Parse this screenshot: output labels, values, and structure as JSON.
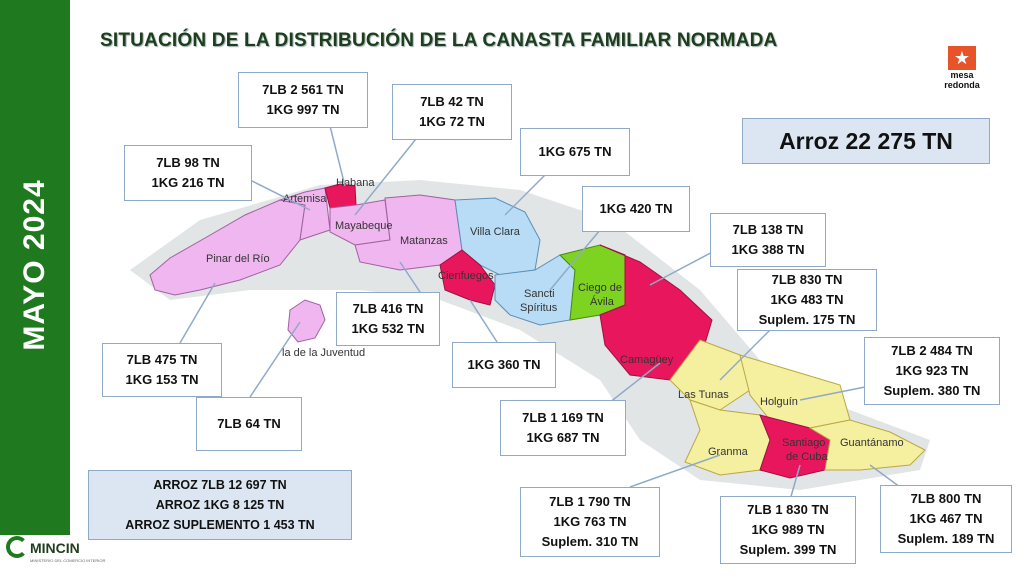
{
  "sidebar": {
    "text": "MAYO 2024"
  },
  "title": "SITUACIÓN DE LA DISTRIBUCIÓN DE LA CANASTA FAMILIAR NORMADA",
  "brand": {
    "line1": "mesa",
    "line2": "redonda"
  },
  "total": {
    "text": "Arroz  22 275 TN"
  },
  "provinces": {
    "pinar": "Pinar del Río",
    "artemisa": "Artemisa",
    "habana": "Habana",
    "mayabeque": "Mayabeque",
    "matanzas": "Matanzas",
    "villaclara": "Villa Clara",
    "cienfuegos": "Cienfuegos",
    "sancti_1": "Sancti",
    "sancti_2": "Spíritus",
    "ciego_1": "Ciego de",
    "ciego_2": "Ávila",
    "camaguey": "Camagüey",
    "lastunas": "Las Tunas",
    "holguin": "Holguín",
    "granma": "Granma",
    "santiago_1": "Santiago",
    "santiago_2": "de Cuba",
    "guantanamo": "Guantánamo",
    "isla": "la de la Juventud"
  },
  "callouts": {
    "habana": [
      "7LB   2 561 TN",
      "1KG   997 TN"
    ],
    "mayabeque": [
      "7LB 42 TN",
      "1KG  72 TN"
    ],
    "artemisa": [
      "7LB  98 TN",
      "1KG   216 TN"
    ],
    "villaclara": [
      "1KG 675 TN"
    ],
    "sancti": [
      "1KG 420 TN"
    ],
    "ciego": [
      "7LB 138 TN",
      "1KG 388 TN"
    ],
    "camaguey_top": [
      "7LB 830 TN",
      "1KG 483 TN",
      "Suplem. 175 TN"
    ],
    "holguin": [
      "7LB  2 484 TN",
      "1KG  923 TN",
      "Suplem. 380 TN"
    ],
    "matanzas": [
      "7LB 416 TN",
      "1KG 532 TN"
    ],
    "cienfuegos": [
      "1KG 360 TN"
    ],
    "pinar": [
      "7LB 475 TN",
      "1KG  153 TN"
    ],
    "isla": [
      "7LB  64 TN"
    ],
    "camaguey": [
      "7LB  1 169 TN",
      "1KG 687 TN"
    ],
    "granma": [
      "7LB  1 790 TN",
      "1KG  763 TN",
      "Suplem.  310 TN"
    ],
    "santiago": [
      "7LB  1 830 TN",
      "1KG  989 TN",
      "Suplem. 399 TN"
    ],
    "guantanamo": [
      "7LB 800 TN",
      "1KG 467 TN",
      "Suplem. 189 TN"
    ]
  },
  "summary": [
    "ARROZ 7LB     12 697 TN",
    "ARROZ 1KG     8 125 TN",
    "ARROZ SUPLEMENTO    1 453 TN"
  ],
  "logo": {
    "name": "MINCIN",
    "sub": "MINISTERIO DEL COMERCIO INTERIOR"
  },
  "colors": {
    "sidebar": "#1f7a1f",
    "west": "#f0b6f0",
    "center": "#b8dcf5",
    "magenta": "#e8175d",
    "ciego": "#7ed321",
    "east": "#f5f0a0",
    "box_fill": "#dce6f2",
    "box_border": "#8faac8"
  }
}
